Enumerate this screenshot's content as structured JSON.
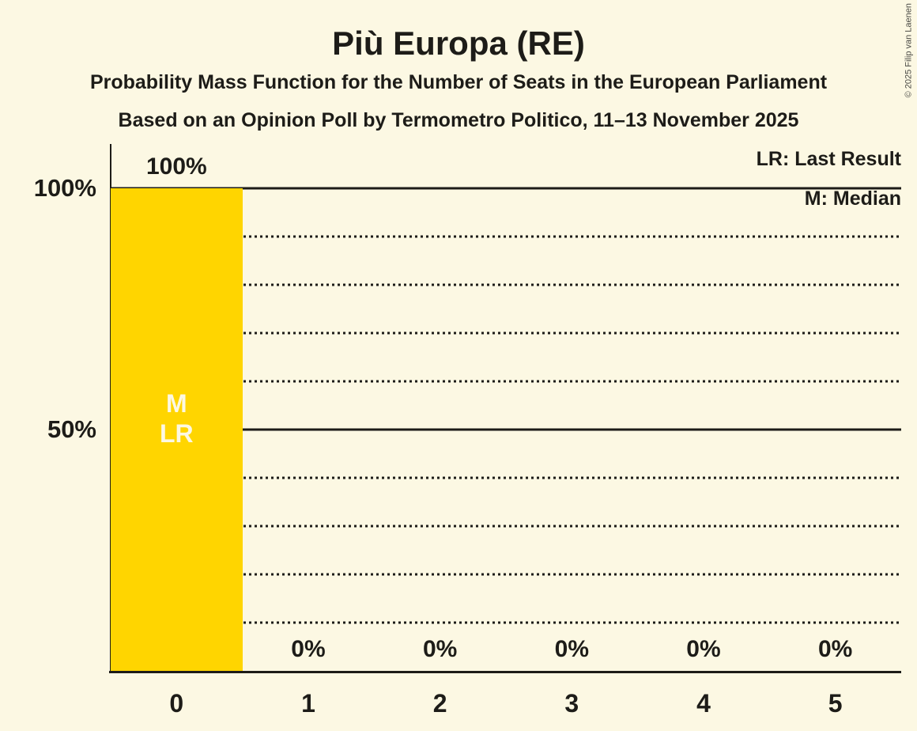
{
  "title": "Più Europa (RE)",
  "subtitles": [
    "Probability Mass Function for the Number of Seats in the European Parliament",
    "Based on an Opinion Poll by Termometro Politico, 11–13 November 2025"
  ],
  "copyright": "© 2025 Filip van Laenen",
  "legend": {
    "items": [
      "LR: Last Result",
      "M: Median"
    ]
  },
  "colors": {
    "background": "#FCF8E3",
    "bar": "#FFD500",
    "text": "#1D1C18",
    "bar_annotation_text": "#FCF8E3",
    "copyright_text": "#4A4A45"
  },
  "chart_data": {
    "type": "bar",
    "title": "Più Europa (RE)",
    "categories": [
      "0",
      "1",
      "2",
      "3",
      "4",
      "5"
    ],
    "values": [
      100,
      0,
      0,
      0,
      0,
      0
    ],
    "value_labels": [
      "100%",
      "0%",
      "0%",
      "0%",
      "0%",
      "0%"
    ],
    "ylim": [
      0,
      100
    ],
    "y_ticks": [
      {
        "value": 100,
        "label": "100%"
      },
      {
        "value": 50,
        "label": "50%"
      }
    ],
    "y_solid_gridlines": [
      100,
      50
    ],
    "y_dotted_gridlines": [
      90,
      80,
      70,
      60,
      40,
      30,
      20,
      10
    ],
    "bar_annotations": [
      {
        "category_index": 0,
        "lines": [
          "M",
          "LR"
        ]
      }
    ],
    "legend_position": "top-right",
    "grid": "dotted-horizontal"
  }
}
